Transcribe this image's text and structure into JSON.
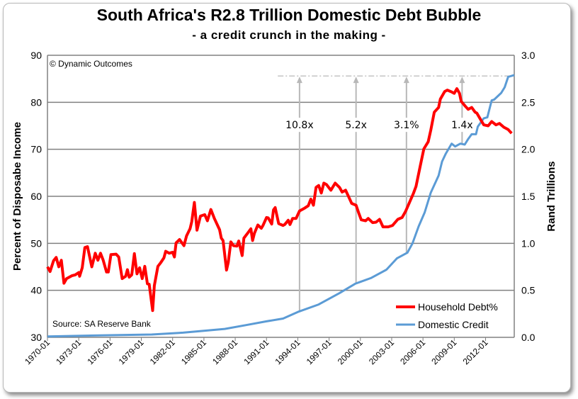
{
  "chart_data": {
    "type": "line",
    "title": "South Africa's R2.8 Trillion Domestic Debt Bubble",
    "subtitle": "- a credit crunch in the making -",
    "copyright": "© Dynamic Outcomes",
    "source": "Source: SA Reserve Bank",
    "xlabel": "",
    "ylabel": "Percent of Disposabe Income",
    "y2label": "Rand Trillions",
    "xlim": [
      "1970-01",
      "2014-10"
    ],
    "ylim": [
      30,
      90
    ],
    "y2lim": [
      0,
      3.0
    ],
    "grid": true,
    "legend_position": "bottom-right",
    "x_tick_labels": [
      "1970-01",
      "1973-01",
      "1976-01",
      "1979-01",
      "1982-01",
      "1985-01",
      "1988-01",
      "1991-01",
      "1994-01",
      "1997-01",
      "2000-01",
      "2003-01",
      "2006-01",
      "2009-01",
      "2012-01"
    ],
    "y_tick_labels": [
      "30",
      "40",
      "50",
      "60",
      "70",
      "80",
      "90"
    ],
    "y2_tick_labels": [
      "0.0",
      "0.5",
      "1.0",
      "1.5",
      "2.0",
      "2.5",
      "3.0"
    ],
    "series": [
      {
        "name": "Household Debt%",
        "axis": "left",
        "color": "#ff0000",
        "points": [
          [
            "1970-01",
            45.0
          ],
          [
            "1970-04",
            44.0
          ],
          [
            "1970-08",
            46.3
          ],
          [
            "1970-11",
            47.0
          ],
          [
            "1971-02",
            45.0
          ],
          [
            "1971-05",
            46.4
          ],
          [
            "1971-08",
            41.5
          ],
          [
            "1971-11",
            42.5
          ],
          [
            "1972-05",
            43.1
          ],
          [
            "1972-09",
            43.3
          ],
          [
            "1973-01",
            43.8
          ],
          [
            "1973-02",
            43.0
          ],
          [
            "1973-05",
            44.8
          ],
          [
            "1973-08",
            49.1
          ],
          [
            "1973-11",
            49.3
          ],
          [
            "1974-04",
            45.0
          ],
          [
            "1974-08",
            47.9
          ],
          [
            "1974-11",
            46.4
          ],
          [
            "1975-02",
            47.9
          ],
          [
            "1975-05",
            46.5
          ],
          [
            "1975-09",
            43.9
          ],
          [
            "1975-11",
            43.9
          ],
          [
            "1976-02",
            47.6
          ],
          [
            "1976-08",
            47.7
          ],
          [
            "1976-11",
            47.1
          ],
          [
            "1977-03",
            42.5
          ],
          [
            "1977-07",
            43.0
          ],
          [
            "1977-09",
            44.4
          ],
          [
            "1977-11",
            42.8
          ],
          [
            "1978-02",
            43.3
          ],
          [
            "1978-05",
            47.8
          ],
          [
            "1978-08",
            43.5
          ],
          [
            "1978-11",
            44.8
          ],
          [
            "1979-02",
            42.5
          ],
          [
            "1979-05",
            45.1
          ],
          [
            "1979-08",
            41.4
          ],
          [
            "1979-10",
            41.3
          ],
          [
            "1980-02",
            35.7
          ],
          [
            "1980-04",
            41.0
          ],
          [
            "1980-08",
            45.1
          ],
          [
            "1980-11",
            45.8
          ],
          [
            "1981-03",
            46.9
          ],
          [
            "1981-05",
            48.3
          ],
          [
            "1981-09",
            47.9
          ],
          [
            "1982-01",
            48.1
          ],
          [
            "1982-03",
            47.1
          ],
          [
            "1982-05",
            50.1
          ],
          [
            "1982-09",
            50.8
          ],
          [
            "1983-02",
            49.5
          ],
          [
            "1983-05",
            51.6
          ],
          [
            "1983-09",
            53.1
          ],
          [
            "1983-11",
            54.6
          ],
          [
            "1984-02",
            58.7
          ],
          [
            "1984-05",
            52.8
          ],
          [
            "1984-09",
            55.8
          ],
          [
            "1985-02",
            56.1
          ],
          [
            "1985-05",
            54.8
          ],
          [
            "1985-09",
            57.2
          ],
          [
            "1986-01",
            55.3
          ],
          [
            "1986-07",
            52.9
          ],
          [
            "1986-09",
            51.1
          ],
          [
            "1986-11",
            50.6
          ],
          [
            "1987-03",
            44.3
          ],
          [
            "1987-05",
            46.0
          ],
          [
            "1987-08",
            50.3
          ],
          [
            "1987-11",
            49.5
          ],
          [
            "1988-03",
            49.4
          ],
          [
            "1988-05",
            50.5
          ],
          [
            "1988-09",
            47.4
          ],
          [
            "1988-11",
            51.1
          ],
          [
            "1989-03",
            52.1
          ],
          [
            "1989-07",
            53.1
          ],
          [
            "1989-09",
            50.6
          ],
          [
            "1989-11",
            52.1
          ],
          [
            "1990-03",
            53.9
          ],
          [
            "1990-07",
            53.2
          ],
          [
            "1990-09",
            53.8
          ],
          [
            "1991-01",
            55.5
          ],
          [
            "1991-03",
            55.4
          ],
          [
            "1991-07",
            54.1
          ],
          [
            "1991-09",
            57.1
          ],
          [
            "1991-11",
            57.6
          ],
          [
            "1992-03",
            54.2
          ],
          [
            "1992-08",
            53.8
          ],
          [
            "1992-10",
            54.0
          ],
          [
            "1993-02",
            54.9
          ],
          [
            "1993-04",
            54.0
          ],
          [
            "1993-07",
            55.3
          ],
          [
            "1993-11",
            55.3
          ],
          [
            "1994-03",
            56.9
          ],
          [
            "1994-09",
            57.5
          ],
          [
            "1995-01",
            58.0
          ],
          [
            "1995-04",
            59.4
          ],
          [
            "1995-07",
            58.1
          ],
          [
            "1995-10",
            61.9
          ],
          [
            "1996-01",
            62.3
          ],
          [
            "1996-04",
            60.7
          ],
          [
            "1996-07",
            62.8
          ],
          [
            "1996-10",
            62.5
          ],
          [
            "1997-03",
            61.3
          ],
          [
            "1997-08",
            62.8
          ],
          [
            "1998-01",
            61.9
          ],
          [
            "1998-04",
            60.9
          ],
          [
            "1998-08",
            61.3
          ],
          [
            "1998-11",
            60.1
          ],
          [
            "1999-03",
            58.5
          ],
          [
            "1999-08",
            58.1
          ],
          [
            "1999-11",
            56.5
          ],
          [
            "2000-02",
            55.0
          ],
          [
            "2000-07",
            54.8
          ],
          [
            "2000-10",
            55.3
          ],
          [
            "2001-03",
            54.4
          ],
          [
            "2001-07",
            54.5
          ],
          [
            "2001-11",
            55.1
          ],
          [
            "2002-03",
            53.5
          ],
          [
            "2002-09",
            53.5
          ],
          [
            "2003-02",
            53.8
          ],
          [
            "2003-08",
            55.1
          ],
          [
            "2004-01",
            55.5
          ],
          [
            "2004-05",
            56.8
          ],
          [
            "2004-09",
            58.5
          ],
          [
            "2005-02",
            60.6
          ],
          [
            "2005-05",
            62.1
          ],
          [
            "2005-10",
            66.6
          ],
          [
            "2006-02",
            70.1
          ],
          [
            "2006-07",
            71.6
          ],
          [
            "2006-10",
            74.1
          ],
          [
            "2007-02",
            77.9
          ],
          [
            "2007-07",
            78.9
          ],
          [
            "2007-09",
            80.7
          ],
          [
            "2008-02",
            82.3
          ],
          [
            "2008-05",
            82.6
          ],
          [
            "2008-10",
            82.2
          ],
          [
            "2009-01",
            81.9
          ],
          [
            "2009-04",
            82.9
          ],
          [
            "2009-07",
            81.9
          ],
          [
            "2009-09",
            80.2
          ],
          [
            "2010-02",
            79.1
          ],
          [
            "2010-05",
            78.5
          ],
          [
            "2010-09",
            78.9
          ],
          [
            "2011-01",
            77.9
          ],
          [
            "2011-03",
            77.7
          ],
          [
            "2011-08",
            76.1
          ],
          [
            "2011-11",
            75.2
          ],
          [
            "2012-04",
            75.0
          ],
          [
            "2012-08",
            75.9
          ],
          [
            "2013-01",
            75.2
          ],
          [
            "2013-05",
            75.5
          ],
          [
            "2013-10",
            74.7
          ],
          [
            "2014-03",
            74.2
          ],
          [
            "2014-07",
            73.4
          ]
        ]
      },
      {
        "name": "Domestic Credit",
        "axis": "right",
        "color": "#5b9bd5",
        "points": [
          [
            "1970-01",
            0.01
          ],
          [
            "1975-01",
            0.02
          ],
          [
            "1980-01",
            0.03
          ],
          [
            "1983-01",
            0.05
          ],
          [
            "1985-01",
            0.07
          ],
          [
            "1987-01",
            0.09
          ],
          [
            "1989-01",
            0.13
          ],
          [
            "1991-01",
            0.17
          ],
          [
            "1992-08",
            0.2
          ],
          [
            "1994-01",
            0.27
          ],
          [
            "1996-01",
            0.35
          ],
          [
            "1998-01",
            0.47
          ],
          [
            "1999-07",
            0.57
          ],
          [
            "2001-01",
            0.63
          ],
          [
            "2002-07",
            0.72
          ],
          [
            "2003-07",
            0.84
          ],
          [
            "2004-07",
            0.9
          ],
          [
            "2005-01",
            1.0
          ],
          [
            "2005-08",
            1.18
          ],
          [
            "2006-03",
            1.33
          ],
          [
            "2006-10",
            1.54
          ],
          [
            "2007-07",
            1.72
          ],
          [
            "2007-11",
            1.87
          ],
          [
            "2008-03",
            1.95
          ],
          [
            "2008-10",
            2.06
          ],
          [
            "2009-02",
            2.03
          ],
          [
            "2009-08",
            2.06
          ],
          [
            "2010-01",
            2.05
          ],
          [
            "2010-05",
            2.11
          ],
          [
            "2010-09",
            2.16
          ],
          [
            "2011-02",
            2.16
          ],
          [
            "2011-04",
            2.24
          ],
          [
            "2011-11",
            2.33
          ],
          [
            "2012-03",
            2.34
          ],
          [
            "2012-08",
            2.52
          ],
          [
            "2012-11",
            2.53
          ],
          [
            "2013-07",
            2.6
          ],
          [
            "2013-11",
            2.66
          ],
          [
            "2014-03",
            2.77
          ],
          [
            "2014-10",
            2.79
          ]
        ]
      }
    ],
    "reference_line": {
      "from": "1992-02",
      "y2": 2.78
    },
    "annotations": [
      {
        "label": "10.8x",
        "x": "1994-03"
      },
      {
        "label": "5.2x",
        "x": "1999-08"
      },
      {
        "label": "3.1%",
        "x": "2004-06"
      },
      {
        "label": "1.4x",
        "x": "2009-10"
      }
    ],
    "annotation_label_y2": 2.23
  }
}
